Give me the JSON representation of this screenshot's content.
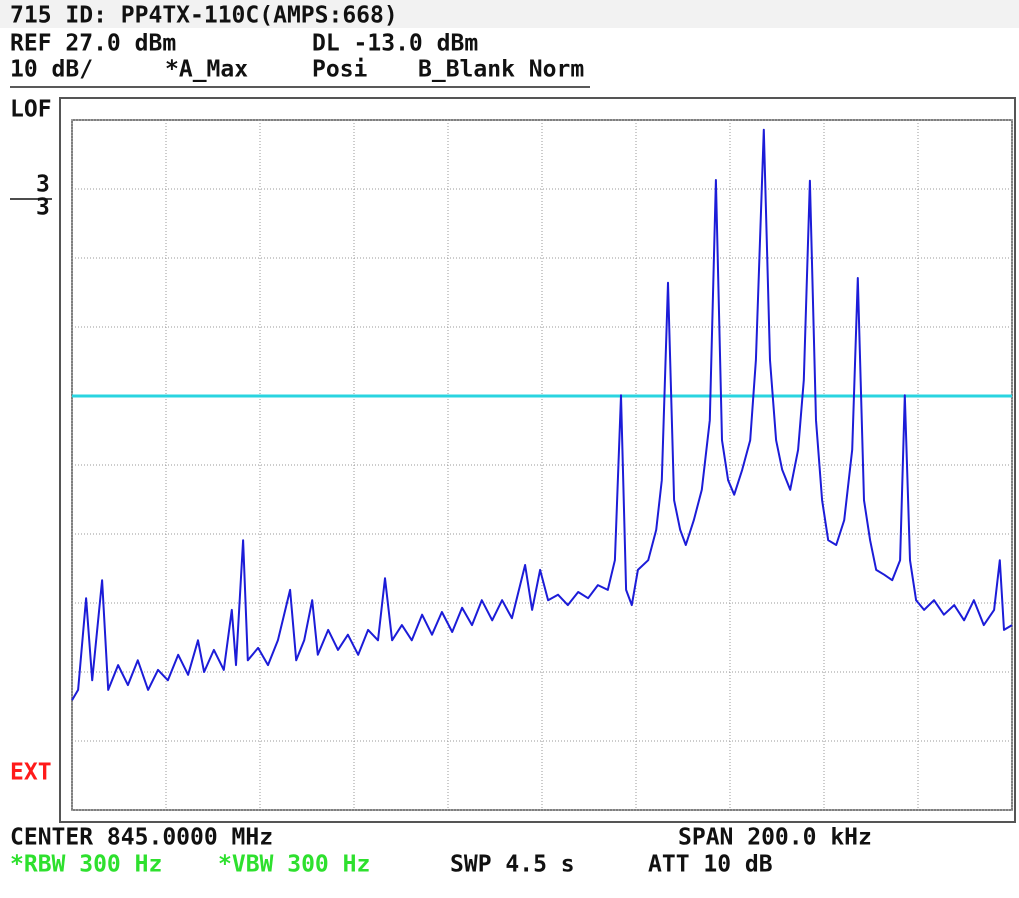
{
  "header": {
    "title": "715 ID: PP4TX-110C(AMPS:668)",
    "ref": "REF 27.0 dBm",
    "display_line": "DL -13.0 dBm",
    "scale": "10 dB/",
    "trace_a": "*A_Max",
    "detector": "Posi",
    "trace_b": "B_Blank Norm"
  },
  "side": {
    "lof": "LOF",
    "marker_top": "3",
    "marker_bottom": "3",
    "ext": "EXT"
  },
  "footer": {
    "center": "CENTER 845.0000 MHz",
    "span": "SPAN 200.0 kHz",
    "rbw": "*RBW 300 Hz",
    "vbw": "*VBW 300 Hz",
    "sweep": "SWP 4.5 s",
    "attenuation": "ATT 10 dB"
  },
  "chart_data": {
    "type": "line",
    "color": "#1c1cd8",
    "grid": true,
    "xlim": [
      -100,
      100
    ],
    "ylim": [
      -73,
      27
    ],
    "xticks": [
      -100,
      -80,
      -60,
      -40,
      -20,
      0,
      20,
      40,
      60,
      80,
      100
    ],
    "yticks": [
      -73,
      -63,
      -53,
      -43,
      -33,
      -23,
      -13,
      -3,
      7,
      17,
      27
    ],
    "display_line": -13,
    "display_line_color": "#2ad4e0",
    "x": [
      -100,
      -98.7,
      -97.0,
      -95.7,
      -93.6,
      -92.3,
      -90.2,
      -88.1,
      -86.0,
      -83.8,
      -81.7,
      -79.6,
      -77.4,
      -75.3,
      -73.2,
      -71.9,
      -69.8,
      -67.7,
      -66.0,
      -65.1,
      -63.6,
      -62.6,
      -60.4,
      -58.3,
      -56.2,
      -53.6,
      -52.3,
      -50.6,
      -48.9,
      -47.7,
      -45.5,
      -43.4,
      -41.3,
      -39.1,
      -37.0,
      -34.9,
      -33.4,
      -31.9,
      -29.8,
      -27.7,
      -25.5,
      -23.4,
      -21.3,
      -19.1,
      -17.0,
      -14.9,
      -12.8,
      -10.6,
      -8.5,
      -6.4,
      -3.6,
      -2.1,
      -0.4,
      1.3,
      3.4,
      5.5,
      7.7,
      9.8,
      11.9,
      14.0,
      15.5,
      16.8,
      17.9,
      19.1,
      20.4,
      22.6,
      24.3,
      25.5,
      26.8,
      28.1,
      29.4,
      30.6,
      32.3,
      34.0,
      35.7,
      37.0,
      38.3,
      39.6,
      40.9,
      42.6,
      44.3,
      45.5,
      47.2,
      48.5,
      49.8,
      51.1,
      52.8,
      54.5,
      55.7,
      57.0,
      58.3,
      59.6,
      60.9,
      62.6,
      64.3,
      66.0,
      67.2,
      68.5,
      69.8,
      71.1,
      72.8,
      74.5,
      76.2,
      77.2,
      78.3,
      79.6,
      81.3,
      83.4,
      85.5,
      87.7,
      89.8,
      91.9,
      94.0,
      96.2,
      97.4,
      98.3,
      100
    ],
    "values": [
      -57.1,
      -55.6,
      -42.3,
      -54.2,
      -39.7,
      -55.6,
      -52.0,
      -54.9,
      -51.3,
      -55.6,
      -52.7,
      -54.2,
      -50.5,
      -53.4,
      -48.4,
      -53.0,
      -49.8,
      -52.7,
      -44.0,
      -52.0,
      -33.9,
      -51.3,
      -49.5,
      -52.0,
      -48.4,
      -41.1,
      -51.3,
      -48.4,
      -42.6,
      -50.5,
      -46.9,
      -49.8,
      -47.6,
      -50.5,
      -46.9,
      -48.4,
      -39.4,
      -48.4,
      -46.2,
      -48.4,
      -44.7,
      -47.6,
      -44.3,
      -47.2,
      -43.7,
      -46.2,
      -42.6,
      -45.5,
      -42.6,
      -45.2,
      -37.5,
      -44.0,
      -38.2,
      -42.6,
      -41.8,
      -43.3,
      -41.4,
      -42.3,
      -40.4,
      -41.1,
      -36.8,
      -12.9,
      -41.1,
      -43.3,
      -38.2,
      -36.8,
      -32.4,
      -25.2,
      3.4,
      -28.1,
      -32.4,
      -34.6,
      -31.0,
      -26.6,
      -16.5,
      18.3,
      -19.4,
      -25.2,
      -27.3,
      -23.7,
      -19.4,
      -7.8,
      25.6,
      -7.8,
      -19.4,
      -23.7,
      -26.6,
      -20.8,
      -10.7,
      18.2,
      -16.5,
      -28.1,
      -33.9,
      -34.6,
      -31.0,
      -20.8,
      4.1,
      -28.1,
      -33.9,
      -38.2,
      -38.9,
      -39.7,
      -36.8,
      -12.9,
      -36.8,
      -42.6,
      -44.0,
      -42.6,
      -44.7,
      -43.3,
      -45.5,
      -42.6,
      -46.2,
      -44.0,
      -36.8,
      -46.9,
      -46.2
    ]
  }
}
